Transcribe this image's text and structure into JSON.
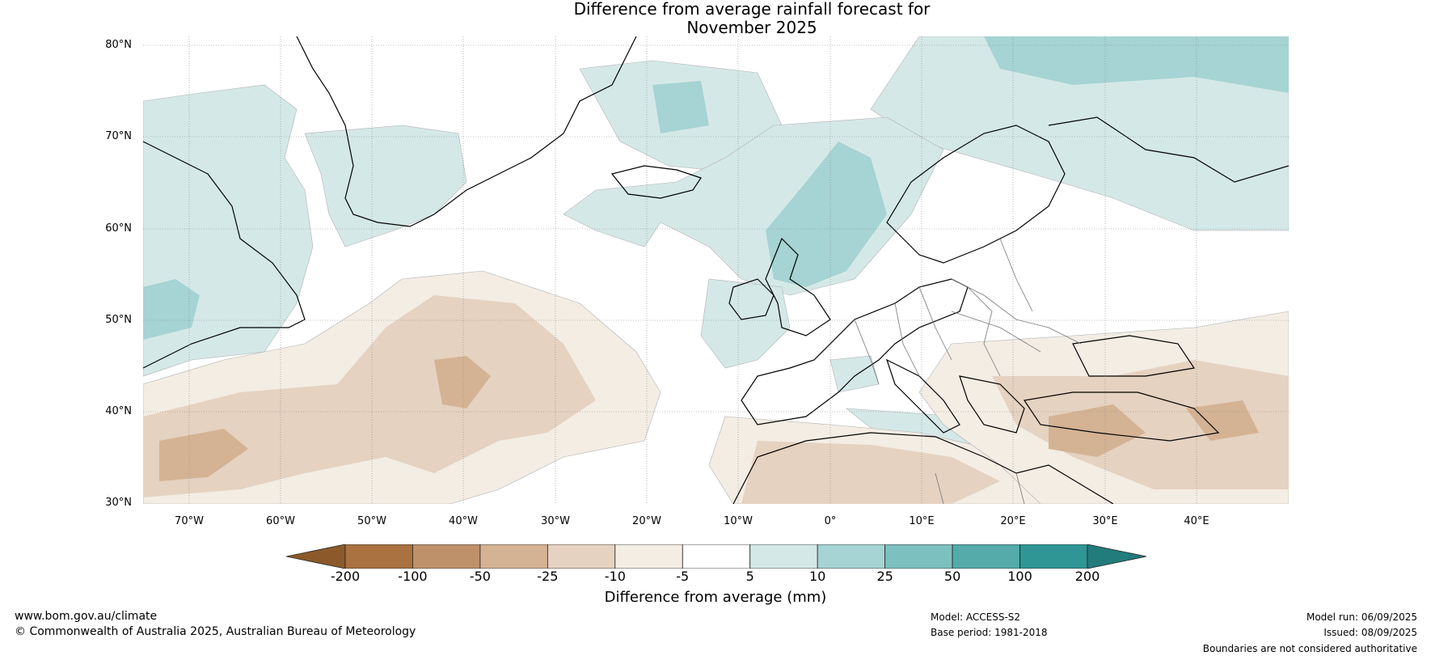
{
  "title": {
    "line1": "Difference from average rainfall forecast for",
    "line2": "November 2025"
  },
  "map": {
    "type": "anomaly-map",
    "region": "North Atlantic and Europe",
    "latitude_labels": [
      "80°N",
      "70°N",
      "60°N",
      "50°N",
      "40°N",
      "30°N"
    ],
    "longitude_labels": [
      "70°W",
      "60°W",
      "50°W",
      "40°W",
      "30°W",
      "20°W",
      "10°W",
      "0°",
      "10°E",
      "20°E",
      "30°E",
      "40°E"
    ],
    "extent": {
      "lon": [
        -75,
        50
      ],
      "lat": [
        30,
        81
      ]
    },
    "gridlines": true
  },
  "colorbar": {
    "title": "Difference from average (mm)",
    "labels": [
      "-200",
      "-100",
      "-50",
      "-25",
      "-10",
      "-5",
      "5",
      "10",
      "25",
      "50",
      "100",
      "200"
    ],
    "colors": [
      "#8c5a2a",
      "#a97240",
      "#bf916a",
      "#d4b394",
      "#e5d2c0",
      "#f3ede4",
      "#ffffff",
      "#d5e8e8",
      "#a6d3d3",
      "#7cc0bf",
      "#55aaaa",
      "#2f9595",
      "#237c7c"
    ]
  },
  "footer": {
    "website": "www.bom.gov.au/climate",
    "copyright": "© Commonwealth of Australia 2025, Australian Bureau of Meteorology",
    "model": "Model: ACCESS-S2",
    "base_period": "Base period: 1981-2018",
    "model_run": "Model run: 06/09/2025",
    "issued": "Issued: 08/09/2025",
    "disclaimer": "Boundaries are not considered authoritative"
  }
}
